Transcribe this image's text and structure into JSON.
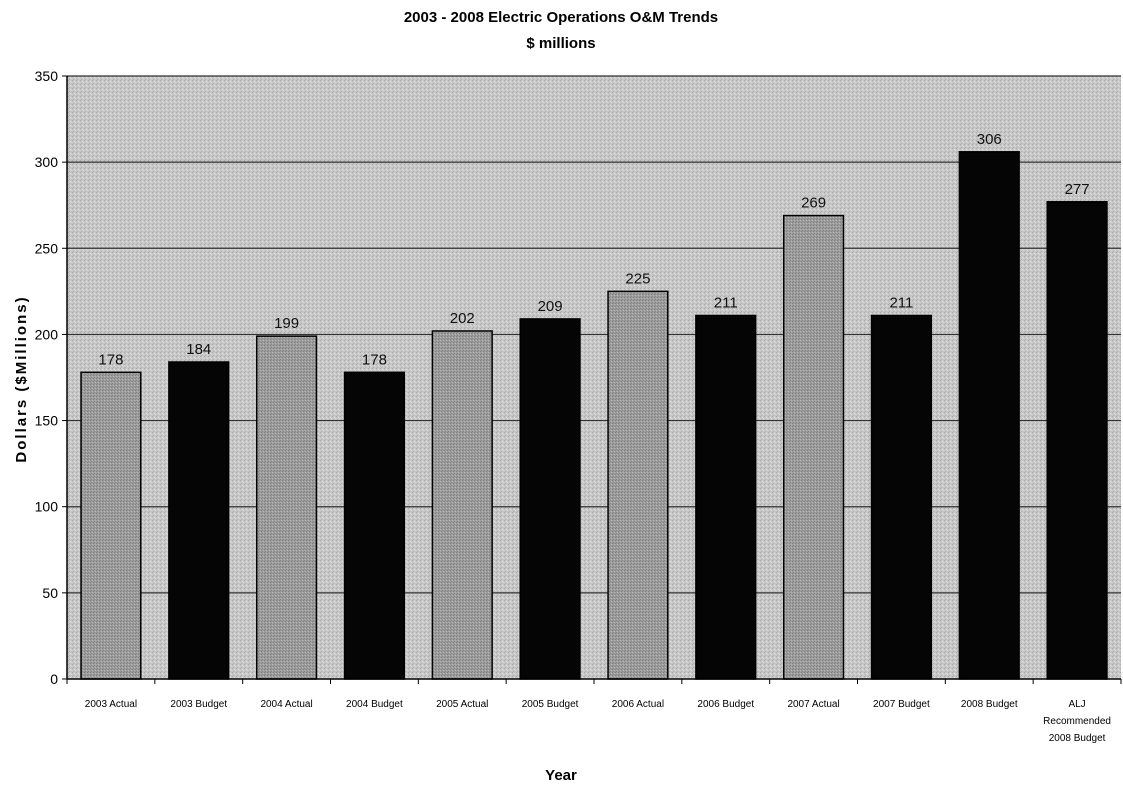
{
  "chart_data": {
    "type": "bar",
    "title": "2003 - 2008 Electric Operations O&M Trends",
    "subtitle": "$ millions",
    "xlabel": "Year",
    "ylabel": "Dollars ($Millions)",
    "ylim": [
      0,
      350
    ],
    "yticks": [
      0,
      50,
      100,
      150,
      200,
      250,
      300,
      350
    ],
    "grid": true,
    "legend": "none",
    "categories": [
      "2003 Actual",
      "2003 Budget",
      "2004 Actual",
      "2004 Budget",
      "2005 Actual",
      "2005 Budget",
      "2006 Actual",
      "2006 Budget",
      "2007 Actual",
      "2007 Budget",
      "2008 Budget",
      "ALJ Recommended 2008 Budget"
    ],
    "values": [
      178,
      184,
      199,
      178,
      202,
      209,
      225,
      211,
      269,
      211,
      306,
      277
    ],
    "bar_kind": [
      "actual",
      "budget",
      "actual",
      "budget",
      "actual",
      "budget",
      "actual",
      "budget",
      "actual",
      "budget",
      "budget",
      "budget"
    ],
    "colors": {
      "actual": "#9a9a9a",
      "budget": "#050505",
      "plot_background": "#c4c4c4",
      "gridline": "#333333"
    }
  }
}
